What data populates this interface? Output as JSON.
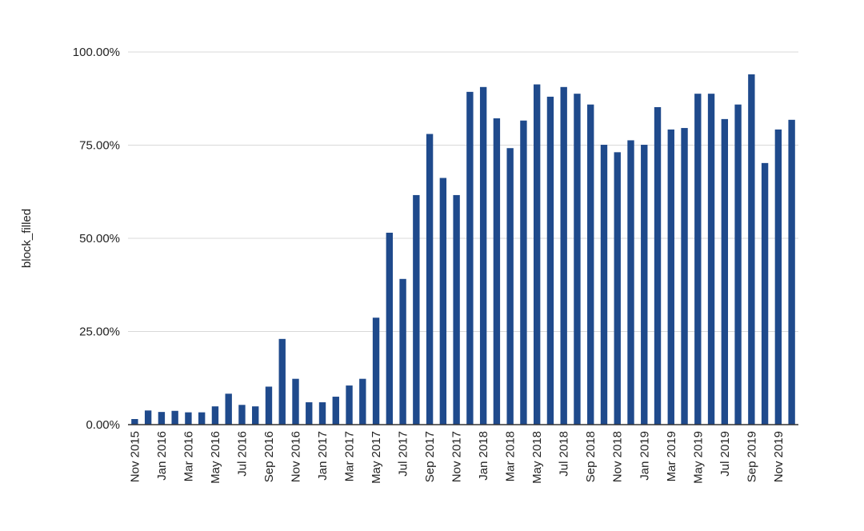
{
  "chart_data": {
    "type": "bar",
    "title": "",
    "xlabel": "",
    "ylabel": "block_filled",
    "ylim": [
      0,
      100
    ],
    "y_ticks": [
      "0.00%",
      "25.00%",
      "50.00%",
      "75.00%",
      "100.00%"
    ],
    "grid": true,
    "legend": "none",
    "bar_color": "#1f4a8c",
    "categories": [
      "Nov 2015",
      "Dec 2015",
      "Jan 2016",
      "Feb 2016",
      "Mar 2016",
      "Apr 2016",
      "May 2016",
      "Jun 2016",
      "Jul 2016",
      "Aug 2016",
      "Sep 2016",
      "Oct 2016",
      "Nov 2016",
      "Dec 2016",
      "Jan 2017",
      "Feb 2017",
      "Mar 2017",
      "Apr 2017",
      "May 2017",
      "Jun 2017",
      "Jul 2017",
      "Aug 2017",
      "Sep 2017",
      "Oct 2017",
      "Nov 2017",
      "Dec 2017",
      "Jan 2018",
      "Feb 2018",
      "Mar 2018",
      "Apr 2018",
      "May 2018",
      "Jun 2018",
      "Jul 2018",
      "Aug 2018",
      "Sep 2018",
      "Oct 2018",
      "Nov 2018",
      "Dec 2018",
      "Jan 2019",
      "Feb 2019",
      "Mar 2019",
      "Apr 2019",
      "May 2019",
      "Jun 2019",
      "Jul 2019",
      "Aug 2019",
      "Sep 2019",
      "Oct 2019",
      "Nov 2019",
      "Dec 2019"
    ],
    "x_tick_labels": [
      "Nov 2015",
      "Jan 2016",
      "Mar 2016",
      "May 2016",
      "Jul 2016",
      "Sep 2016",
      "Nov 2016",
      "Jan 2017",
      "Mar 2017",
      "May 2017",
      "Jul 2017",
      "Sep 2017",
      "Nov 2017",
      "Jan 2018",
      "Mar 2018",
      "May 2018",
      "Jul 2018",
      "Sep 2018",
      "Nov 2018",
      "Jan 2019",
      "Mar 2019",
      "May 2019",
      "Jul 2019",
      "Sep 2019",
      "Nov 2019"
    ],
    "values": [
      1.5,
      3.8,
      3.4,
      3.7,
      3.3,
      3.3,
      4.9,
      8.3,
      5.3,
      4.9,
      10.2,
      23.0,
      12.3,
      6.0,
      6.0,
      7.5,
      10.5,
      12.3,
      28.7,
      51.5,
      39.1,
      61.6,
      78.0,
      66.2,
      61.6,
      89.3,
      90.6,
      82.2,
      74.2,
      81.6,
      91.3,
      88.0,
      90.6,
      88.8,
      85.9,
      75.1,
      73.1,
      76.3,
      75.1,
      85.2,
      79.2,
      79.6,
      88.8,
      88.8,
      82.0,
      85.9,
      94.0,
      70.2,
      79.2,
      81.8
    ]
  }
}
